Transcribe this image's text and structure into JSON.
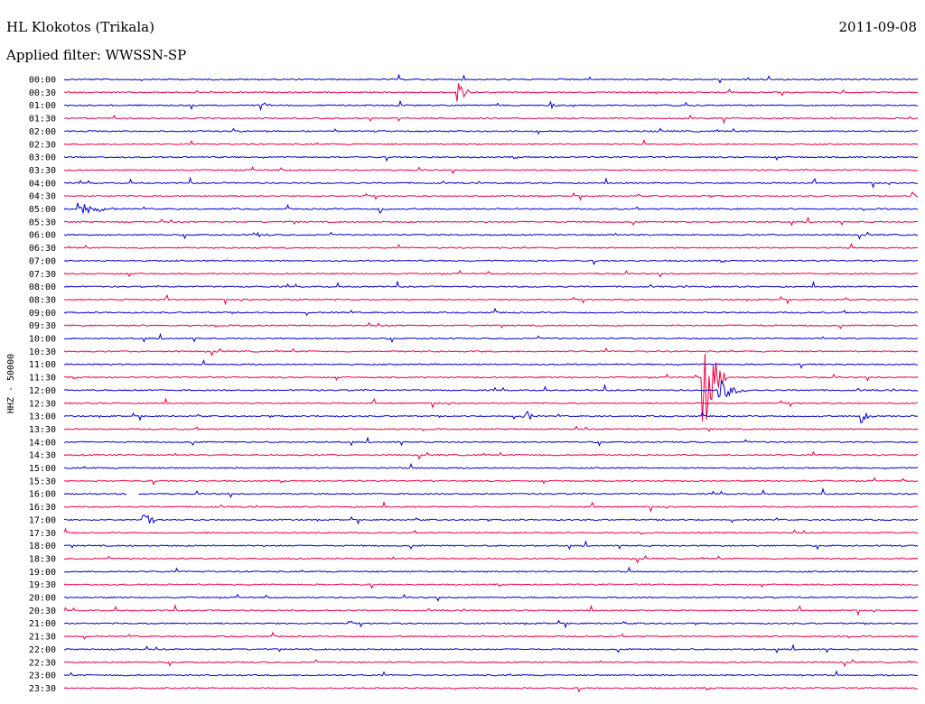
{
  "header": {
    "station": "HL Klokotos (Trikala)",
    "date": "2011-09-08",
    "filter": "Applied filter: WWSSN-SP"
  },
  "colors": {
    "even_row": "#0000cc",
    "odd_row": "#ee0044"
  },
  "chart_data": {
    "type": "line",
    "title": "HL Klokotos (Trikala)",
    "subtitle": "Applied filter: WWSSN-SP",
    "ylabel": "HHZ - 50000",
    "xlabel": "",
    "x_unit": "minutes within 30-min row",
    "x_range": [
      0,
      30
    ],
    "grid": false,
    "legend": "none",
    "rows": [
      "00:00",
      "00:30",
      "01:00",
      "01:30",
      "02:00",
      "02:30",
      "03:00",
      "03:30",
      "04:00",
      "04:30",
      "05:00",
      "05:30",
      "06:00",
      "06:30",
      "07:00",
      "07:30",
      "08:00",
      "08:30",
      "09:00",
      "09:30",
      "10:00",
      "10:30",
      "11:00",
      "11:30",
      "12:00",
      "12:30",
      "13:00",
      "13:30",
      "14:00",
      "14:30",
      "15:00",
      "15:30",
      "16:00",
      "16:30",
      "17:00",
      "17:30",
      "18:00",
      "18:30",
      "19:00",
      "19:30",
      "20:00",
      "20:30",
      "21:00",
      "21:30",
      "22:00",
      "22:30",
      "23:00",
      "23:30"
    ],
    "events": [
      {
        "row": "00:30",
        "minute": 13.8,
        "amplitude": 12,
        "duration_min": 0.8
      },
      {
        "row": "01:00",
        "minute": 6.9,
        "amplitude": 5,
        "duration_min": 0.6
      },
      {
        "row": "01:00",
        "minute": 17.1,
        "amplitude": 4,
        "duration_min": 0.5
      },
      {
        "row": "05:00",
        "minute": 0.5,
        "amplitude": 11,
        "duration_min": 1.6
      },
      {
        "row": "05:00",
        "minute": 11.1,
        "amplitude": 5,
        "duration_min": 0.4
      },
      {
        "row": "04:30",
        "minute": 29.8,
        "amplitude": 6,
        "duration_min": 0.5
      },
      {
        "row": "06:00",
        "minute": 6.7,
        "amplitude": 3,
        "duration_min": 1.4
      },
      {
        "row": "11:30",
        "minute": 22.4,
        "amplitude": 80,
        "duration_min": 0.9
      },
      {
        "row": "12:00",
        "minute": 23.0,
        "amplitude": 14,
        "duration_min": 1.2
      },
      {
        "row": "13:00",
        "minute": 16.1,
        "amplitude": 12,
        "duration_min": 0.6
      },
      {
        "row": "13:00",
        "minute": 28.0,
        "amplitude": 8,
        "duration_min": 0.6
      },
      {
        "row": "17:00",
        "minute": 2.8,
        "amplitude": 10,
        "duration_min": 0.6
      },
      {
        "row": "21:00",
        "minute": 10.0,
        "amplitude": 3,
        "duration_min": 0.4
      }
    ],
    "gaps": [
      {
        "row": "16:00",
        "start_min": 2.2,
        "end_min": 2.6
      }
    ]
  }
}
